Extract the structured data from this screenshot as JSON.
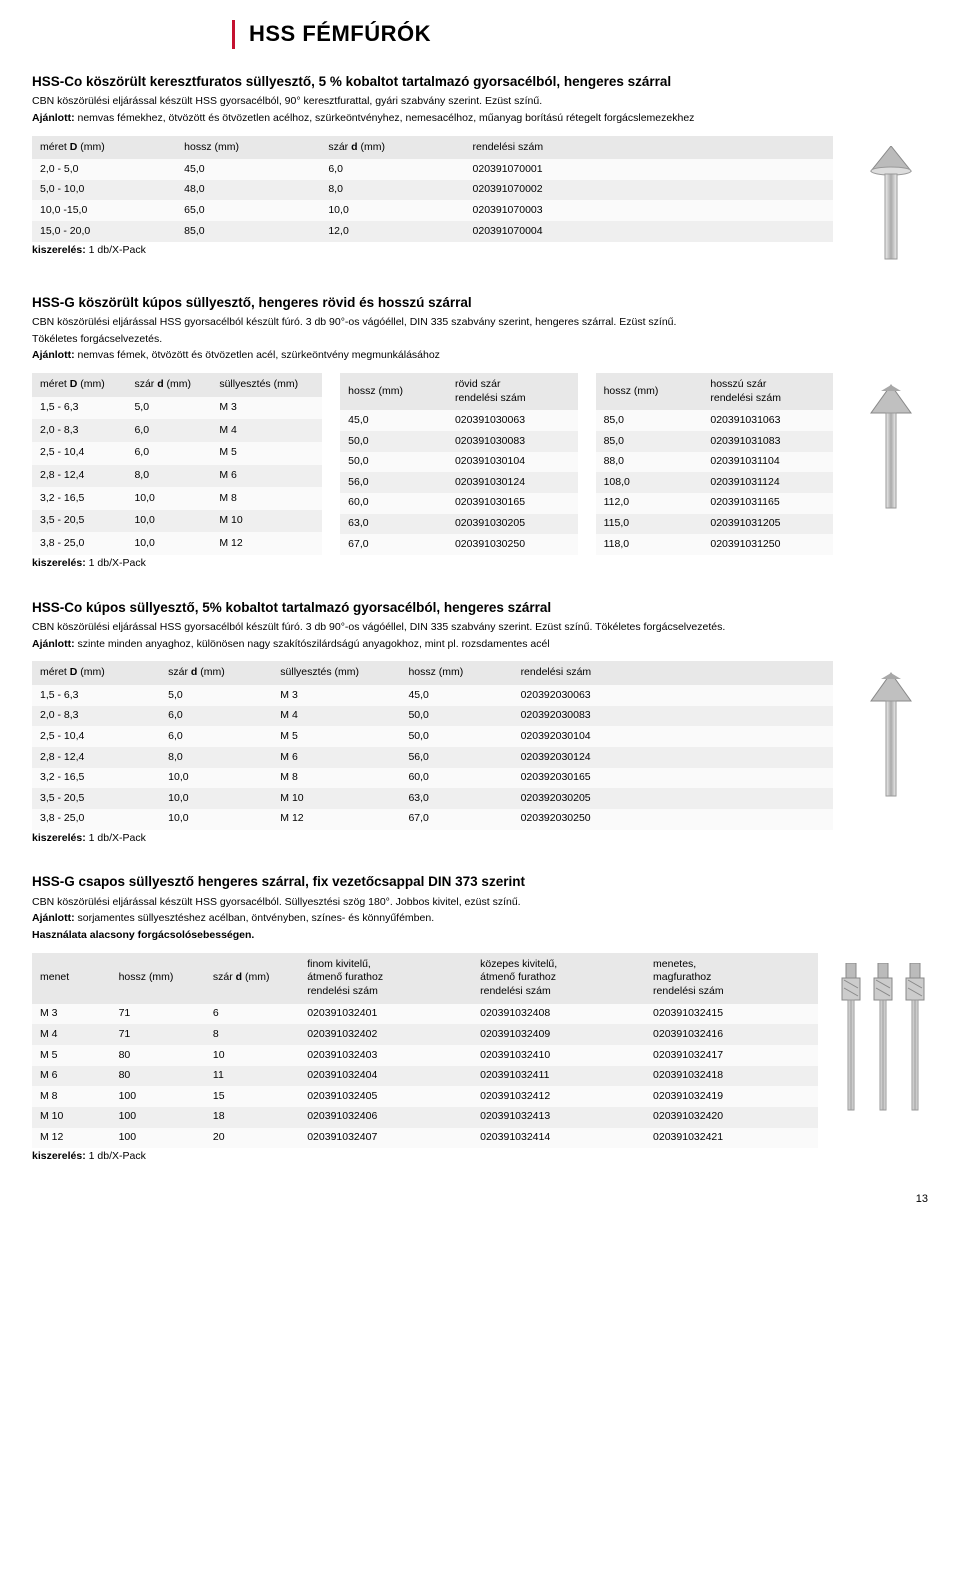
{
  "pageTitle": "HSS FÉMFÚRÓK",
  "pageNumber": "13",
  "kiszereles_label": "kiszerelés:",
  "kiszereles_value": "1 db/X-Pack",
  "s1": {
    "title": "HSS-Co köszörült keresztfuratos süllyesztő, 5 % kobaltot tartalmazó gyorsacélból, hengeres szárral",
    "desc1": "CBN köszörülési eljárással készült HSS gyorsacélból, 90° keresztfurattal, gyári szabvány szerint. Ezüst színű.",
    "ajanlott_label": "Ajánlott:",
    "ajanlott": "nemvas fémekhez, ötvözött és ötvözetlen acélhoz, szürkeöntvényhez, nemesacélhoz, műanyag borítású rétegelt forgácslemezekhez",
    "headers": {
      "c1": "méret D (mm)",
      "c2": "hossz (mm)",
      "c3": "szár d (mm)",
      "c4": "rendelési szám"
    },
    "rows": [
      [
        "2,0 - 5,0",
        "45,0",
        "6,0",
        "020391070001"
      ],
      [
        "5,0 - 10,0",
        "48,0",
        "8,0",
        "020391070002"
      ],
      [
        "10,0 -15,0",
        "65,0",
        "10,0",
        "020391070003"
      ],
      [
        "15,0 - 20,0",
        "85,0",
        "12,0",
        "020391070004"
      ]
    ]
  },
  "s2": {
    "title": "HSS-G köszörült kúpos süllyesztő, hengeres rövid és hosszú szárral",
    "desc1": "CBN köszörülési eljárással HSS gyorsacélból készült fúró. 3 db 90°-os vágóéllel, DIN 335 szabvány szerint, hengeres szárral. Ezüst színű.",
    "desc2": "Tökéletes forgácselvezetés.",
    "ajanlott_label": "Ajánlott:",
    "ajanlott": "nemvas fémek, ötvözött és ötvözetlen acél, szürkeöntvény megmunkálásához",
    "headersA": {
      "c1": "méret D (mm)",
      "c2": "szár  d (mm)",
      "c3": "süllyesztés (mm)"
    },
    "headersB": {
      "c1": "hossz (mm)",
      "c2_l1": "rövid szár",
      "c2_l2": "rendelési szám"
    },
    "headersC": {
      "c1": "hossz (mm)",
      "c2_l1": "hosszú szár",
      "c2_l2": "rendelési szám"
    },
    "rowsA": [
      [
        "1,5 - 6,3",
        "5,0",
        "M 3"
      ],
      [
        "2,0 - 8,3",
        "6,0",
        "M 4"
      ],
      [
        "2,5 - 10,4",
        "6,0",
        "M 5"
      ],
      [
        "2,8 - 12,4",
        "8,0",
        "M 6"
      ],
      [
        "3,2 - 16,5",
        "10,0",
        "M 8"
      ],
      [
        "3,5 - 20,5",
        "10,0",
        "M 10"
      ],
      [
        "3,8 - 25,0",
        "10,0",
        "M 12"
      ]
    ],
    "rowsB": [
      [
        "45,0",
        "020391030063"
      ],
      [
        "50,0",
        "020391030083"
      ],
      [
        "50,0",
        "020391030104"
      ],
      [
        "56,0",
        "020391030124"
      ],
      [
        "60,0",
        "020391030165"
      ],
      [
        "63,0",
        "020391030205"
      ],
      [
        "67,0",
        "020391030250"
      ]
    ],
    "rowsC": [
      [
        "85,0",
        "020391031063"
      ],
      [
        "85,0",
        "020391031083"
      ],
      [
        "88,0",
        "020391031104"
      ],
      [
        "108,0",
        "020391031124"
      ],
      [
        "112,0",
        "020391031165"
      ],
      [
        "115,0",
        "020391031205"
      ],
      [
        "118,0",
        "020391031250"
      ]
    ]
  },
  "s3": {
    "title": "HSS-Co kúpos süllyesztő, 5% kobaltot tartalmazó gyorsacélból, hengeres szárral",
    "desc1": "CBN köszörülési eljárással HSS gyorsacélból készült fúró. 3 db 90°-os vágóéllel, DIN 335 szabvány szerint. Ezüst színű. Tökéletes forgácselvezetés.",
    "ajanlott_label": "Ajánlott:",
    "ajanlott": "szinte minden anyaghoz, különösen nagy szakítószilárdságú anyagokhoz, mint pl. rozsdamentes acél",
    "headers": {
      "c1": "méret D (mm)",
      "c2": "szár  d (mm)",
      "c3": "süllyesztés (mm)",
      "c4": "hossz (mm)",
      "c5": "rendelési szám"
    },
    "rows": [
      [
        "1,5 - 6,3",
        "5,0",
        "M 3",
        "45,0",
        "020392030063"
      ],
      [
        "2,0 - 8,3",
        "6,0",
        "M 4",
        "50,0",
        "020392030083"
      ],
      [
        "2,5 - 10,4",
        "6,0",
        "M 5",
        "50,0",
        "020392030104"
      ],
      [
        "2,8 - 12,4",
        "8,0",
        "M 6",
        "56,0",
        "020392030124"
      ],
      [
        "3,2 - 16,5",
        "10,0",
        "M 8",
        "60,0",
        "020392030165"
      ],
      [
        "3,5 - 20,5",
        "10,0",
        "M 10",
        "63,0",
        "020392030205"
      ],
      [
        "3,8 - 25,0",
        "10,0",
        "M 12",
        "67,0",
        "020392030250"
      ]
    ]
  },
  "s4": {
    "title": "HSS-G csapos süllyesztő hengeres szárral, fix vezetőcsappal DIN 373 szerint",
    "desc1": "CBN köszörülési eljárással készült HSS gyorsacélból. Süllyesztési szög 180°. Jobbos kivitel, ezüst színű.",
    "ajanlott_label": "Ajánlott:",
    "ajanlott": "sorjamentes süllyesztéshez acélban, öntvényben, színes- és könnyűfémben.",
    "hasznalat_label": "Használata alacsony forgácsolósebességen.",
    "headers": {
      "c1": "menet",
      "c2": "hossz (mm)",
      "c3": "szár d (mm)",
      "c4_l1": "finom kivitelű,",
      "c4_l2": "átmenő furathoz",
      "c4_l3": "rendelési szám",
      "c5_l1": "közepes kivitelű,",
      "c5_l2": "átmenő furathoz",
      "c5_l3": "rendelési szám",
      "c6_l1": "menetes,",
      "c6_l2": "magfurathoz",
      "c6_l3": "rendelési szám"
    },
    "rows": [
      [
        "M 3",
        "71",
        "6",
        "020391032401",
        "020391032408",
        "020391032415"
      ],
      [
        "M 4",
        "71",
        "8",
        "020391032402",
        "020391032409",
        "020391032416"
      ],
      [
        "M 5",
        "80",
        "10",
        "020391032403",
        "020391032410",
        "020391032417"
      ],
      [
        "M 6",
        "80",
        "11",
        "020391032404",
        "020391032411",
        "020391032418"
      ],
      [
        "M 8",
        "100",
        "15",
        "020391032405",
        "020391032412",
        "020391032419"
      ],
      [
        "M 10",
        "100",
        "18",
        "020391032406",
        "020391032413",
        "020391032420"
      ],
      [
        "M 12",
        "100",
        "20",
        "020391032407",
        "020391032414",
        "020391032421"
      ]
    ]
  }
}
